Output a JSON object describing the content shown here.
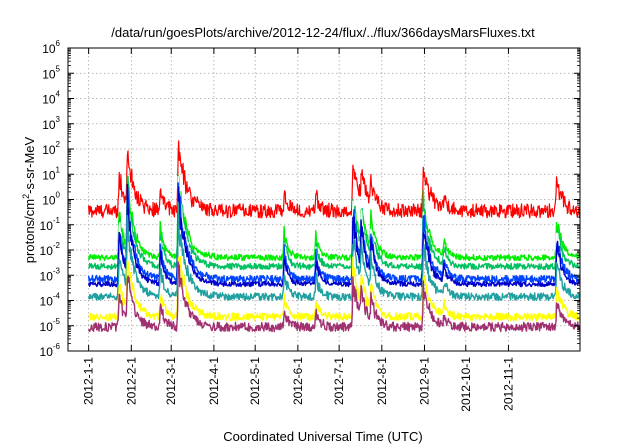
{
  "chart_data": {
    "type": "line",
    "title": "/data/run/goesPlots/archive/2012-12-24/flux/../flux/366daysMarsFluxes.txt",
    "xlabel": "Coordinated Universal Time (UTC)",
    "ylabel_prefix": "protons/cm",
    "ylabel_exponent": "2",
    "ylabel_suffix": "-s-sr-MeV",
    "yscale": "log",
    "ylim_exponents": [
      -6,
      6
    ],
    "y_tick_exponents": [
      "-6",
      "-5",
      "-4",
      "-3",
      "-2",
      "-1",
      "0",
      "1",
      "2",
      "3",
      "4",
      "5",
      "6"
    ],
    "y_tick_base": "10",
    "xlim_days": [
      -15,
      357
    ],
    "x_ticks": [
      {
        "label": "2012-1-1",
        "day": 0
      },
      {
        "label": "2012-2-1",
        "day": 31
      },
      {
        "label": "2012-3-1",
        "day": 60
      },
      {
        "label": "2012-4-1",
        "day": 91
      },
      {
        "label": "2012-5-1",
        "day": 121
      },
      {
        "label": "2012-6-1",
        "day": 152
      },
      {
        "label": "2012-7-1",
        "day": 182
      },
      {
        "label": "2012-8-1",
        "day": 213
      },
      {
        "label": "2012-9-1",
        "day": 244
      },
      {
        "label": "2012-10-1",
        "day": 274
      },
      {
        "label": "2012-11-1",
        "day": 305
      }
    ],
    "grid": true,
    "events": [
      {
        "day": 22,
        "amp": 1.5,
        "width": 4
      },
      {
        "day": 28,
        "amp": 2.2,
        "width": 5
      },
      {
        "day": 52,
        "amp": 1.0,
        "width": 3
      },
      {
        "day": 65,
        "amp": 2.6,
        "width": 6
      },
      {
        "day": 142,
        "amp": 0.8,
        "width": 3
      },
      {
        "day": 165,
        "amp": 0.7,
        "width": 3
      },
      {
        "day": 192,
        "amp": 2.0,
        "width": 5
      },
      {
        "day": 198,
        "amp": 1.2,
        "width": 4
      },
      {
        "day": 205,
        "amp": 1.0,
        "width": 4
      },
      {
        "day": 243,
        "amp": 1.8,
        "width": 5
      },
      {
        "day": 258,
        "amp": 0.5,
        "width": 3
      },
      {
        "day": 340,
        "amp": 1.3,
        "width": 4
      }
    ],
    "series": [
      {
        "color": "#ff0000",
        "baseline_log": -0.45,
        "noise": 0.28,
        "event_scale": 1.0
      },
      {
        "color": "#00ee00",
        "baseline_log": -2.3,
        "noise": 0.12,
        "event_scale": 1.25
      },
      {
        "color": "#00c060",
        "baseline_log": -2.65,
        "noise": 0.12,
        "event_scale": 1.3
      },
      {
        "color": "#ffffff",
        "baseline_log": -2.95,
        "noise": 0.08,
        "event_scale": 1.3
      },
      {
        "color": "#0044ff",
        "baseline_log": -3.15,
        "noise": 0.14,
        "event_scale": 1.35
      },
      {
        "color": "#0000cc",
        "baseline_log": -3.35,
        "noise": 0.1,
        "event_scale": 1.35
      },
      {
        "color": "#20a0a0",
        "baseline_log": -3.85,
        "noise": 0.15,
        "event_scale": 1.2
      },
      {
        "color": "#ffff00",
        "baseline_log": -4.65,
        "noise": 0.15,
        "event_scale": 1.0
      },
      {
        "color": "#a03070",
        "baseline_log": -5.05,
        "noise": 0.18,
        "event_scale": 0.9
      }
    ]
  }
}
